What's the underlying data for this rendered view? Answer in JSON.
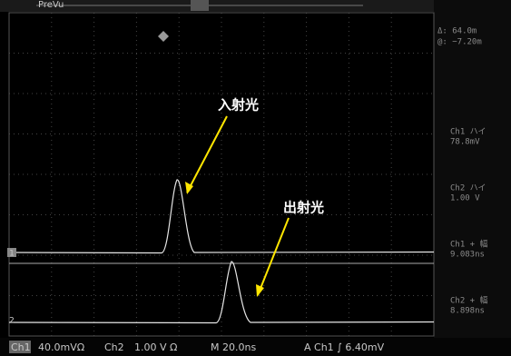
{
  "top_bar": {
    "mode": "PreVu"
  },
  "cursor_readout": {
    "delta": "Δ: 64.0m",
    "at": "@: −7.20m"
  },
  "measurements": [
    {
      "label": "Ch1 ハイ",
      "value": "78.8mV"
    },
    {
      "label": "Ch2 ハイ",
      "value": "1.00 V"
    },
    {
      "label": "Ch1 + 幅",
      "value": "9.083ns"
    },
    {
      "label": "Ch2 + 幅",
      "value": "8.898ns"
    }
  ],
  "annotations": {
    "incident": "入射光",
    "transmitted": "出射光"
  },
  "channel_markers": [
    "1",
    "2"
  ],
  "status_bar": {
    "ch1": "Ch1",
    "ch1_scale": "40.0mVΩ",
    "ch2": "Ch2",
    "ch2_scale": "1.00 V Ω",
    "timebase": "M 20.0ns",
    "trigger": "A  Ch1 ∫ 6.40mV"
  }
}
